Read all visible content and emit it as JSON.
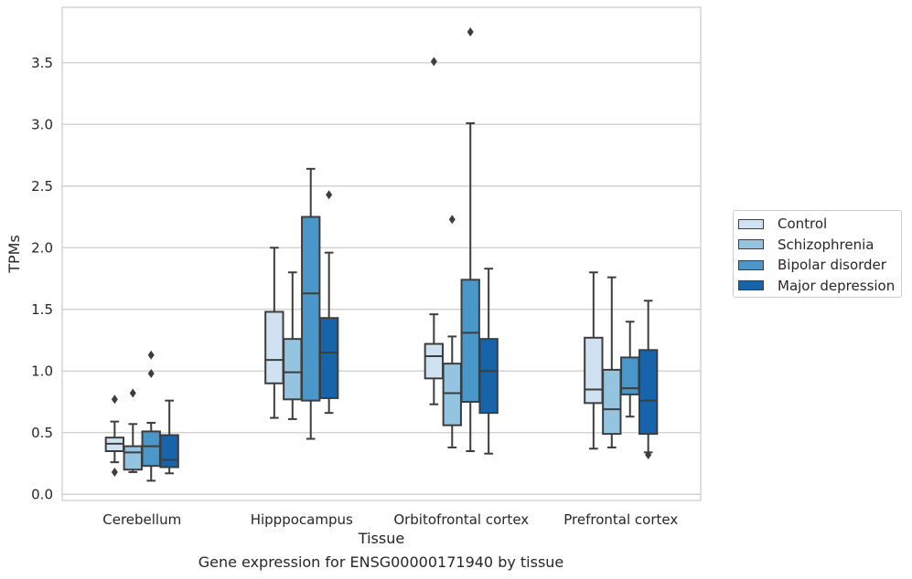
{
  "chart_data": {
    "type": "box",
    "title": "",
    "caption": "Gene expression for ENSG00000171940 by tissue",
    "xlabel": "Tissue",
    "ylabel": "TPMs",
    "ylim": [
      -0.05,
      3.95
    ],
    "yticks": [
      "0.0",
      "0.5",
      "1.0",
      "1.5",
      "2.0",
      "2.5",
      "3.0",
      "3.5"
    ],
    "grid": true,
    "legend_position": "right, outside plot",
    "categories": [
      "Cerebellum",
      "Hipppocampus",
      "Orbitofrontal cortex",
      "Prefrontal cortex"
    ],
    "series": [
      {
        "name": "Control",
        "color": "#d0e1f2",
        "boxes": [
          {
            "whislo": 0.26,
            "q1": 0.35,
            "med": 0.41,
            "q3": 0.46,
            "whishi": 0.59,
            "fliers": [
              0.77,
              0.18
            ]
          },
          {
            "whislo": 0.62,
            "q1": 0.9,
            "med": 1.09,
            "q3": 1.48,
            "whishi": 2.0,
            "fliers": []
          },
          {
            "whislo": 0.73,
            "q1": 0.94,
            "med": 1.12,
            "q3": 1.22,
            "whishi": 1.46,
            "fliers": [
              3.51
            ]
          },
          {
            "whislo": 0.37,
            "q1": 0.74,
            "med": 0.85,
            "q3": 1.27,
            "whishi": 1.8,
            "fliers": []
          }
        ]
      },
      {
        "name": "Schizophrenia",
        "color": "#94c4df",
        "boxes": [
          {
            "whislo": 0.18,
            "q1": 0.2,
            "med": 0.34,
            "q3": 0.39,
            "whishi": 0.57,
            "fliers": [
              0.82
            ]
          },
          {
            "whislo": 0.61,
            "q1": 0.77,
            "med": 0.99,
            "q3": 1.26,
            "whishi": 1.8,
            "fliers": []
          },
          {
            "whislo": 0.38,
            "q1": 0.56,
            "med": 0.82,
            "q3": 1.06,
            "whishi": 1.28,
            "fliers": [
              2.23
            ]
          },
          {
            "whislo": 0.38,
            "q1": 0.49,
            "med": 0.69,
            "q3": 1.01,
            "whishi": 1.76,
            "fliers": []
          }
        ]
      },
      {
        "name": "Bipolar disorder",
        "color": "#4a98c9",
        "boxes": [
          {
            "whislo": 0.11,
            "q1": 0.23,
            "med": 0.39,
            "q3": 0.51,
            "whishi": 0.58,
            "fliers": [
              1.13,
              0.98
            ]
          },
          {
            "whislo": 0.45,
            "q1": 0.76,
            "med": 1.63,
            "q3": 2.25,
            "whishi": 2.64,
            "fliers": []
          },
          {
            "whislo": 0.35,
            "q1": 0.75,
            "med": 1.31,
            "q3": 1.74,
            "whishi": 3.01,
            "fliers": [
              3.75
            ]
          },
          {
            "whislo": 0.63,
            "q1": 0.81,
            "med": 0.86,
            "q3": 1.11,
            "whishi": 1.4,
            "fliers": []
          }
        ]
      },
      {
        "name": "Major depression",
        "color": "#1764ab",
        "boxes": [
          {
            "whislo": 0.17,
            "q1": 0.22,
            "med": 0.28,
            "q3": 0.48,
            "whishi": 0.76,
            "fliers": []
          },
          {
            "whislo": 0.66,
            "q1": 0.78,
            "med": 1.15,
            "q3": 1.43,
            "whishi": 1.96,
            "fliers": [
              2.43
            ]
          },
          {
            "whislo": 0.33,
            "q1": 0.66,
            "med": 1.0,
            "q3": 1.26,
            "whishi": 1.83,
            "fliers": []
          },
          {
            "whislo": 0.34,
            "q1": 0.49,
            "med": 0.76,
            "q3": 1.17,
            "whishi": 1.57,
            "fliers": [
              0.32
            ]
          }
        ]
      }
    ]
  }
}
